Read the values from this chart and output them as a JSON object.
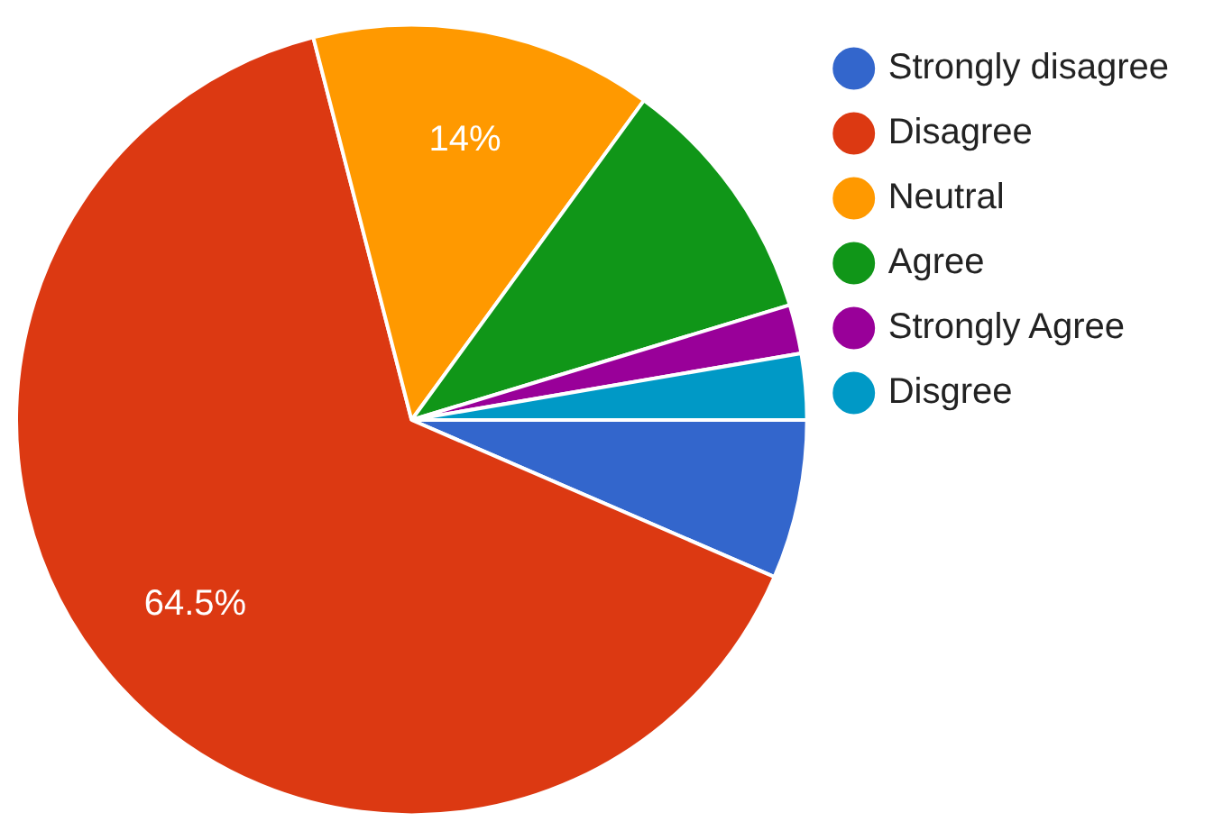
{
  "chart_data": {
    "type": "pie",
    "categories": [
      "Strongly disagree",
      "Disagree",
      "Neutral",
      "Agree",
      "Strongly Agree",
      "Disgree"
    ],
    "values": [
      6.5,
      64.5,
      14,
      10.3,
      2,
      2.7
    ],
    "colors": [
      "#3366cc",
      "#dc3912",
      "#ff9900",
      "#109618",
      "#990099",
      "#0099c6"
    ],
    "value_labels": [
      null,
      "64.5%",
      "14%",
      null,
      null,
      null
    ],
    "legend": "top right"
  }
}
